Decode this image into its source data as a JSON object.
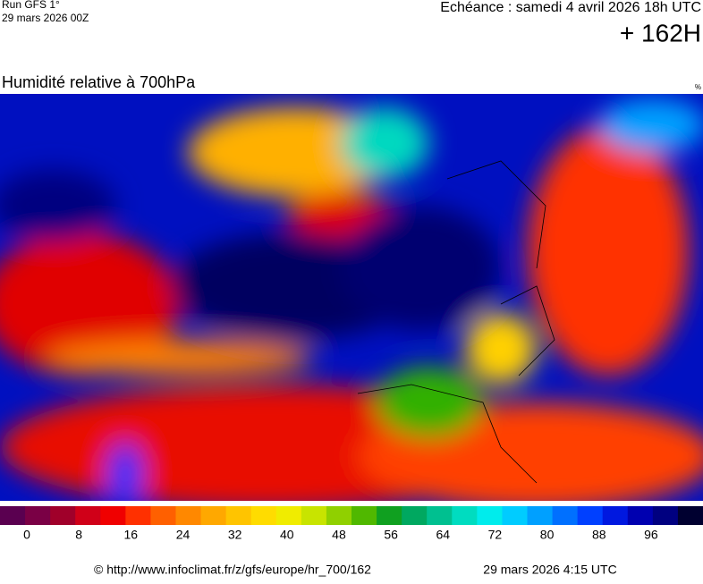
{
  "header": {
    "run": "Run GFS 1°",
    "run_date": "29 mars 2026 00Z",
    "valid": "Echéance : samedi 4 avril 2026 18h UTC",
    "lead": "+ 162H",
    "title": "Humidité relative à 700hPa",
    "unit": "%"
  },
  "colorbar": {
    "colors": [
      "#5a0050",
      "#7a0045",
      "#a0002a",
      "#d00018",
      "#f00000",
      "#ff3000",
      "#ff6000",
      "#ff8800",
      "#ffa800",
      "#ffc400",
      "#ffdc00",
      "#f0ec00",
      "#c8e400",
      "#90d000",
      "#50b800",
      "#10a020",
      "#00a860",
      "#00c090",
      "#00dcc0",
      "#00ecec",
      "#00ccff",
      "#00a0ff",
      "#0070ff",
      "#0040ff",
      "#0018e0",
      "#0000b0",
      "#000080",
      "#000030"
    ],
    "ticks": [
      0,
      8,
      16,
      24,
      32,
      40,
      48,
      56,
      64,
      72,
      80,
      88,
      96
    ]
  },
  "footer": {
    "url": "© http://www.infoclimat.fr/z/gfs/europe/hr_700/162",
    "generated": "29 mars 2026  4:15 UTC"
  }
}
